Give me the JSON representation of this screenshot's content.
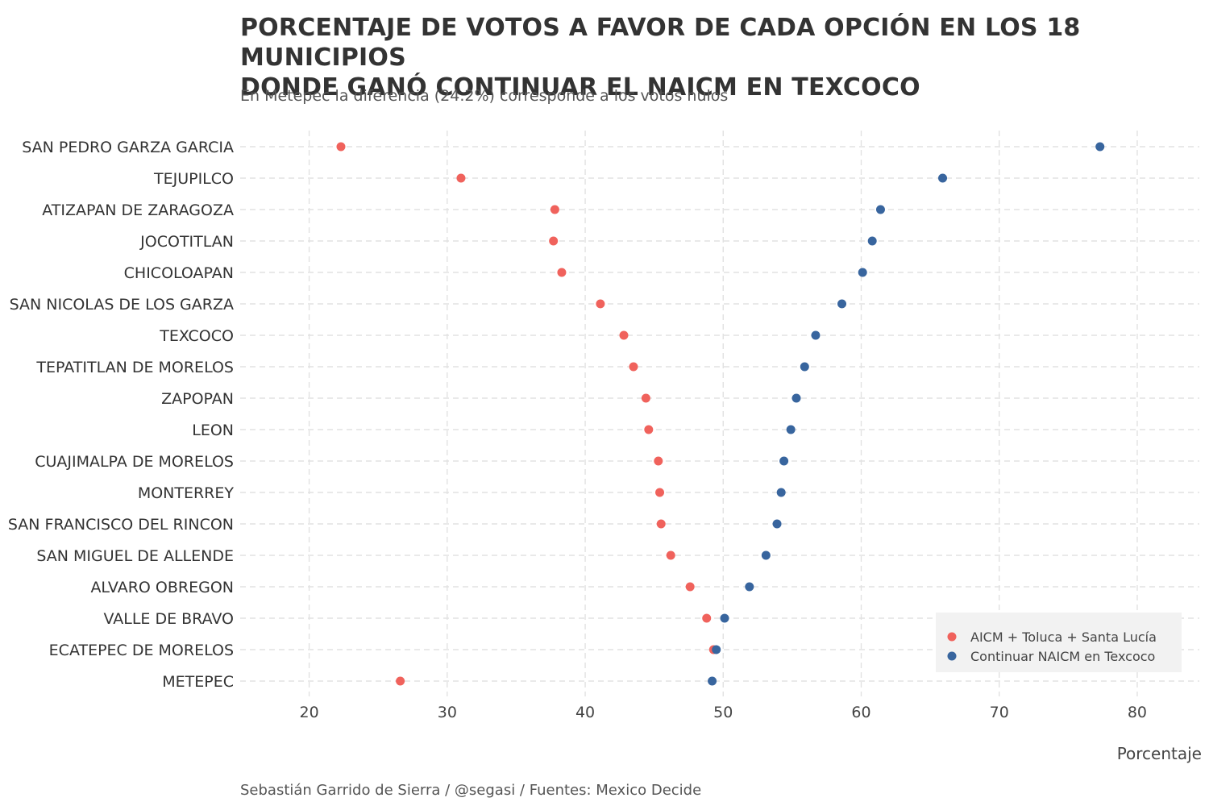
{
  "chart_data": {
    "type": "scatter",
    "title_lines": [
      "PORCENTAJE DE VOTOS A FAVOR DE CADA OPCIÓN EN LOS 18 MUNICIPIOS",
      "DONDE GANÓ CONTINUAR EL NAICM EN TEXCOCO"
    ],
    "subtitle": "En Metepec la diferencia (24.2%) corresponde a los votos nulos",
    "caption": "Sebastián Garrido de Sierra / @segasi / Fuentes: Mexico Decide",
    "xlabel": "Porcentaje",
    "ylabel": "",
    "xlim": [
      15,
      84.5
    ],
    "xticks": [
      20,
      30,
      40,
      50,
      60,
      70,
      80
    ],
    "grid": true,
    "legend_position": "bottom-right",
    "categories": [
      "SAN PEDRO GARZA GARCIA",
      "TEJUPILCO",
      "ATIZAPAN DE ZARAGOZA",
      "JOCOTITLAN",
      "CHICOLOAPAN",
      "SAN NICOLAS DE LOS GARZA",
      "TEXCOCO",
      "TEPATITLAN DE MORELOS",
      "ZAPOPAN",
      "LEON",
      "CUAJIMALPA DE MORELOS",
      "MONTERREY",
      "SAN FRANCISCO DEL RINCON",
      "SAN MIGUEL DE ALLENDE",
      "ALVARO OBREGON",
      "VALLE DE BRAVO",
      "ECATEPEC DE MORELOS",
      "METEPEC"
    ],
    "series": [
      {
        "name": "AICM + Toluca + Santa Lucía",
        "color": "#F0625C",
        "values": [
          22.3,
          31.0,
          37.8,
          37.7,
          38.3,
          41.1,
          42.8,
          43.5,
          44.4,
          44.6,
          45.3,
          45.4,
          45.5,
          46.2,
          47.6,
          48.8,
          49.3,
          26.6
        ]
      },
      {
        "name": "Continuar NAICM en Texcoco",
        "color": "#38659E",
        "values": [
          77.3,
          65.9,
          61.4,
          60.8,
          60.1,
          58.6,
          56.7,
          55.9,
          55.3,
          54.9,
          54.4,
          54.2,
          53.9,
          53.1,
          51.9,
          50.1,
          49.5,
          49.2
        ]
      }
    ]
  }
}
